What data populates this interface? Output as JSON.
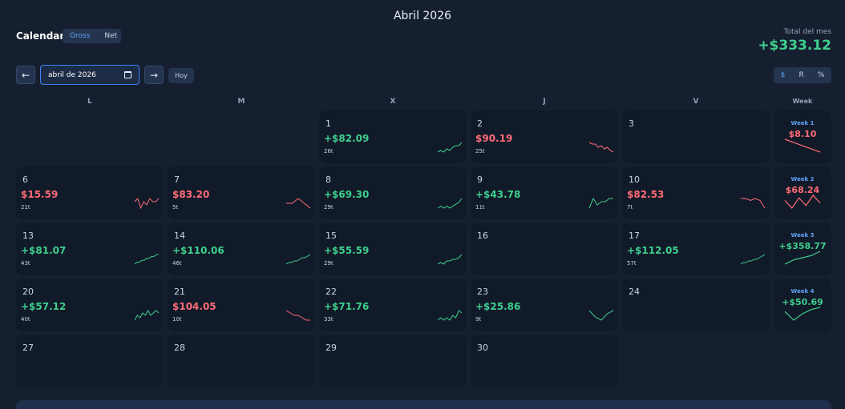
{
  "header": {
    "month_title": "Abril 2026",
    "app_title": "Calendar",
    "view_toggle": [
      "Gross",
      "Net"
    ],
    "total_label": "Total del mes",
    "total_value": "+$333.12"
  },
  "toolbar": {
    "prev_label": "←",
    "next_label": "→",
    "date_value": "abril de 2026",
    "today_label": "Hoy",
    "modes": [
      "$",
      "R",
      "%"
    ]
  },
  "weekdays": [
    "L",
    "M",
    "X",
    "J",
    "V"
  ],
  "week_header": "Week",
  "colors": {
    "positive": "#3ecf8e",
    "negative": "#ff6b78",
    "accent": "#60a5fa"
  },
  "days": [
    {
      "day": "1",
      "pnl": "+$82.09",
      "trades": "26t",
      "sign": "pos",
      "trend": [
        2,
        3,
        2,
        4,
        3,
        5,
        6,
        6,
        8
      ]
    },
    {
      "day": "2",
      "pnl": "$90.19",
      "trades": "25t",
      "sign": "neg",
      "trend": [
        8,
        7,
        7,
        5,
        6,
        4,
        5,
        3,
        2
      ]
    },
    {
      "day": "3"
    },
    {
      "day": "6",
      "pnl": "$15.59",
      "trades": "21t",
      "sign": "neg",
      "trend": [
        5,
        6,
        3,
        5,
        4,
        6,
        5,
        5,
        6
      ]
    },
    {
      "day": "7",
      "pnl": "$83.20",
      "trades": "5t",
      "sign": "neg",
      "trend": [
        5,
        5,
        6,
        5,
        4
      ]
    },
    {
      "day": "8",
      "pnl": "+$69.30",
      "trades": "29t",
      "sign": "pos",
      "trend": [
        3,
        4,
        3,
        4,
        3,
        4,
        5,
        6,
        8
      ]
    },
    {
      "day": "9",
      "pnl": "+$43.78",
      "trades": "11t",
      "sign": "pos",
      "trend": [
        2,
        5,
        3,
        4,
        4,
        5,
        5
      ]
    },
    {
      "day": "10",
      "pnl": "$82.53",
      "trades": "7t",
      "sign": "neg",
      "trend": [
        6,
        6,
        5,
        6,
        5,
        1
      ]
    },
    {
      "day": "13",
      "pnl": "+$81.07",
      "trades": "43t",
      "sign": "pos",
      "trend": [
        2,
        3,
        3,
        4,
        4,
        5,
        5,
        6,
        6,
        7,
        7
      ]
    },
    {
      "day": "14",
      "pnl": "+$110.06",
      "trades": "46t",
      "sign": "pos",
      "trend": [
        2,
        3,
        3,
        4,
        4,
        5,
        6,
        6,
        7,
        8
      ]
    },
    {
      "day": "15",
      "pnl": "+$55.59",
      "trades": "29t",
      "sign": "pos",
      "trend": [
        2,
        3,
        2,
        4,
        4,
        5,
        5,
        6,
        8
      ]
    },
    {
      "day": "16"
    },
    {
      "day": "17",
      "pnl": "+$112.05",
      "trades": "57t",
      "sign": "pos",
      "trend": [
        2,
        3,
        3,
        4,
        4,
        5,
        5,
        6,
        7,
        8
      ]
    },
    {
      "day": "20",
      "pnl": "+$57.12",
      "trades": "40t",
      "sign": "pos",
      "trend": [
        3,
        5,
        4,
        6,
        5,
        7,
        5,
        6,
        7,
        6
      ]
    },
    {
      "day": "21",
      "pnl": "$104.05",
      "trades": "10t",
      "sign": "neg",
      "trend": [
        7,
        6,
        5,
        5,
        4,
        3,
        3
      ]
    },
    {
      "day": "22",
      "pnl": "+$71.76",
      "trades": "33t",
      "sign": "pos",
      "trend": [
        3,
        4,
        3,
        4,
        3,
        5,
        4,
        7,
        6
      ]
    },
    {
      "day": "23",
      "pnl": "+$25.86",
      "trades": "9t",
      "sign": "pos",
      "trend": [
        6,
        4,
        3,
        5,
        6
      ]
    },
    {
      "day": "24"
    },
    {
      "day": "27"
    },
    {
      "day": "28"
    },
    {
      "day": "29"
    },
    {
      "day": "30"
    }
  ],
  "weeks": [
    {
      "label": "Week 1",
      "value": "$8.10",
      "sign": "neg",
      "trend": [
        8,
        6,
        4,
        2
      ]
    },
    {
      "label": "Week 2",
      "value": "$68.24",
      "sign": "neg",
      "trend": [
        6,
        3,
        7,
        4,
        8,
        5
      ]
    },
    {
      "label": "Week 3",
      "value": "+$358.77",
      "sign": "pos",
      "trend": [
        2,
        4,
        5,
        6,
        8
      ]
    },
    {
      "label": "Week 4",
      "value": "+$50.69",
      "sign": "pos",
      "trend": [
        6,
        2,
        5,
        7,
        8
      ]
    }
  ]
}
